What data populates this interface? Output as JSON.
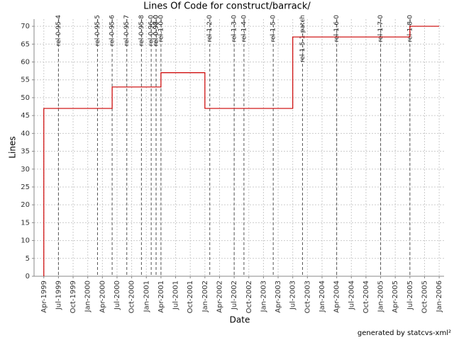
{
  "chart_data": {
    "type": "line",
    "step": "after",
    "title": "Lines Of Code for construct/barrack/",
    "x_label": "Date",
    "y_label": "Lines",
    "footer": "generated by statcvs-xml²",
    "x": [
      "1999-04",
      "1999-04",
      "2000-06",
      "2001-04",
      "2002-01",
      "2003-07",
      "2005-07",
      "2006-01"
    ],
    "values": [
      0,
      47,
      53,
      57,
      47,
      67,
      70,
      70
    ],
    "color": "#cc0000",
    "xlim": [
      "1999-02",
      "2006-02"
    ],
    "xticks": [
      {
        "value": "1999-04",
        "label": "Apr-1999"
      },
      {
        "value": "1999-07",
        "label": "Jul-1999"
      },
      {
        "value": "1999-10",
        "label": "Oct-1999"
      },
      {
        "value": "2000-01",
        "label": "Jan-2000"
      },
      {
        "value": "2000-04",
        "label": "Apr-2000"
      },
      {
        "value": "2000-07",
        "label": "Jul-2000"
      },
      {
        "value": "2000-10",
        "label": "Oct-2000"
      },
      {
        "value": "2001-01",
        "label": "Jan-2001"
      },
      {
        "value": "2001-04",
        "label": "Apr-2001"
      },
      {
        "value": "2001-07",
        "label": "Jul-2001"
      },
      {
        "value": "2001-10",
        "label": "Oct-2001"
      },
      {
        "value": "2002-01",
        "label": "Jan-2002"
      },
      {
        "value": "2002-04",
        "label": "Apr-2002"
      },
      {
        "value": "2002-07",
        "label": "Jul-2002"
      },
      {
        "value": "2002-10",
        "label": "Oct-2002"
      },
      {
        "value": "2003-01",
        "label": "Jan-2003"
      },
      {
        "value": "2003-04",
        "label": "Apr-2003"
      },
      {
        "value": "2003-07",
        "label": "Jul-2003"
      },
      {
        "value": "2003-10",
        "label": "Oct-2003"
      },
      {
        "value": "2004-01",
        "label": "Jan-2004"
      },
      {
        "value": "2004-04",
        "label": "Apr-2004"
      },
      {
        "value": "2004-07",
        "label": "Jul-2004"
      },
      {
        "value": "2004-10",
        "label": "Oct-2004"
      },
      {
        "value": "2005-01",
        "label": "Jan-2005"
      },
      {
        "value": "2005-04",
        "label": "Apr-2005"
      },
      {
        "value": "2005-07",
        "label": "Jul-2005"
      },
      {
        "value": "2005-10",
        "label": "Oct-2005"
      },
      {
        "value": "2006-01",
        "label": "Jan-2006"
      }
    ],
    "ylim": [
      0,
      72
    ],
    "yticks": [
      0,
      5,
      10,
      15,
      20,
      25,
      30,
      35,
      40,
      45,
      50,
      55,
      60,
      65,
      70
    ],
    "grid": true,
    "tags": [
      {
        "x": "1999-07",
        "label": "rel-0-95-4"
      },
      {
        "x": "2000-03",
        "label": "rel-0-95-5"
      },
      {
        "x": "2000-06",
        "label": "rel-0-95-6"
      },
      {
        "x": "2000-09",
        "label": "rel-0-95-7"
      },
      {
        "x": "2000-12",
        "label": "rel-0-95-8"
      },
      {
        "x": "2001-02",
        "label": "rel-0-96-0"
      },
      {
        "x": "2001-03",
        "label": "rel-0-97-0"
      },
      {
        "x": "2001-03",
        "label": "rel-0-98-0"
      },
      {
        "x": "2001-04",
        "label": "rel-1-0-0"
      },
      {
        "x": "2002-02",
        "label": "rel-1-2-0"
      },
      {
        "x": "2002-07",
        "label": "rel-1-3-0"
      },
      {
        "x": "2002-09",
        "label": "rel-1-4-0"
      },
      {
        "x": "2003-03",
        "label": "rel-1-5-0"
      },
      {
        "x": "2003-09",
        "label": "rel-1-5-1-patch"
      },
      {
        "x": "2004-04",
        "label": "rel-1-6-0"
      },
      {
        "x": "2005-01",
        "label": "rel-1-7-0"
      },
      {
        "x": "2005-07",
        "label": "rel-1-8-0"
      }
    ]
  }
}
